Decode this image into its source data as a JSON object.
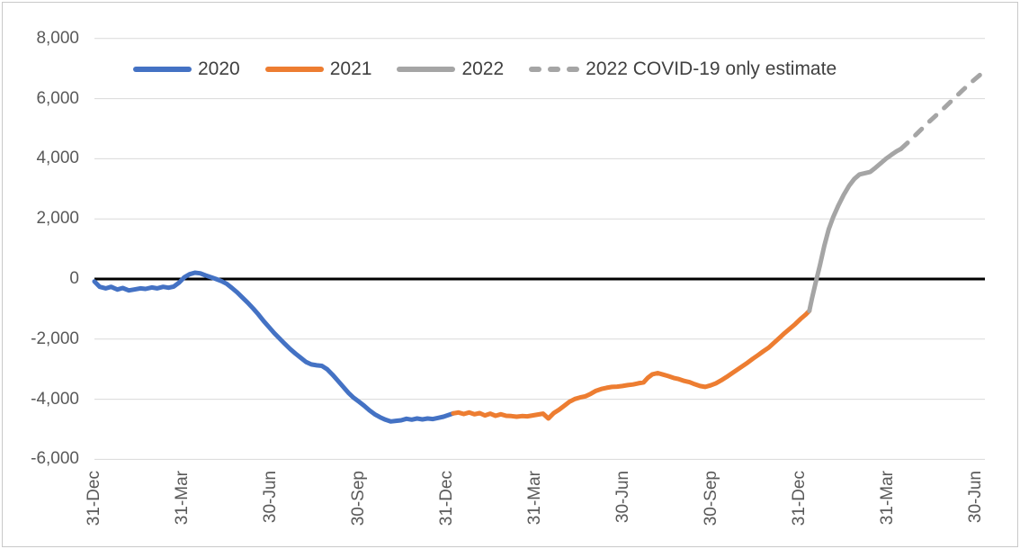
{
  "window": {
    "background": "#ffffff",
    "border_color": "#c9c9c9"
  },
  "chart_data": {
    "type": "line",
    "title": "",
    "xlabel": "",
    "ylabel": "",
    "grid": {
      "color": "#d9d9d9",
      "zero_line_color": "#000000",
      "grid_on": true
    },
    "y_axis": {
      "tick_labels": [
        "8,000",
        "6,000",
        "4,000",
        "2,000",
        "0",
        "-2,000",
        "-4,000",
        "-6,000"
      ],
      "tick_values": [
        8000,
        6000,
        4000,
        2000,
        0,
        -2000,
        -4000,
        -6000
      ],
      "range": [
        -6000,
        8000
      ],
      "label_color": "#595959"
    },
    "x_axis": {
      "tick_labels": [
        "31-Dec",
        "31-Mar",
        "30-Jun",
        "30-Sep",
        "31-Dec",
        "31-Mar",
        "30-Jun",
        "30-Sep",
        "31-Dec",
        "31-Mar",
        "30-Jun"
      ],
      "unit": "quarter-end dates, Dec 2019 through Jun 2022",
      "label_color": "#595959"
    },
    "legend": {
      "position": "top",
      "entries": [
        {
          "label": "2020",
          "color": "#4472c4",
          "dashed": false
        },
        {
          "label": "2021",
          "color": "#ed7d31",
          "dashed": false
        },
        {
          "label": "2022",
          "color": "#a5a5a5",
          "dashed": false
        },
        {
          "label": "2022 COVID-19 only estimate",
          "color": "#a5a5a5",
          "dashed": true
        }
      ]
    },
    "series": [
      {
        "name": "2020",
        "color": "#4472c4",
        "dashed": false,
        "points": [
          [
            0.0,
            -80
          ],
          [
            0.06,
            -260
          ],
          [
            0.13,
            -310
          ],
          [
            0.19,
            -260
          ],
          [
            0.26,
            -350
          ],
          [
            0.32,
            -300
          ],
          [
            0.39,
            -380
          ],
          [
            0.45,
            -350
          ],
          [
            0.52,
            -310
          ],
          [
            0.58,
            -330
          ],
          [
            0.65,
            -280
          ],
          [
            0.71,
            -310
          ],
          [
            0.78,
            -260
          ],
          [
            0.84,
            -290
          ],
          [
            0.9,
            -250
          ],
          [
            0.96,
            -120
          ],
          [
            1.02,
            60
          ],
          [
            1.08,
            160
          ],
          [
            1.14,
            210
          ],
          [
            1.2,
            190
          ],
          [
            1.26,
            120
          ],
          [
            1.32,
            60
          ],
          [
            1.38,
            0
          ],
          [
            1.44,
            -70
          ],
          [
            1.5,
            -160
          ],
          [
            1.56,
            -300
          ],
          [
            1.62,
            -450
          ],
          [
            1.68,
            -620
          ],
          [
            1.74,
            -790
          ],
          [
            1.8,
            -980
          ],
          [
            1.86,
            -1180
          ],
          [
            1.92,
            -1400
          ],
          [
            1.98,
            -1600
          ],
          [
            2.04,
            -1800
          ],
          [
            2.1,
            -1980
          ],
          [
            2.16,
            -2160
          ],
          [
            2.22,
            -2330
          ],
          [
            2.28,
            -2480
          ],
          [
            2.34,
            -2620
          ],
          [
            2.4,
            -2760
          ],
          [
            2.46,
            -2840
          ],
          [
            2.52,
            -2870
          ],
          [
            2.58,
            -2890
          ],
          [
            2.64,
            -3000
          ],
          [
            2.7,
            -3180
          ],
          [
            2.76,
            -3380
          ],
          [
            2.82,
            -3580
          ],
          [
            2.88,
            -3780
          ],
          [
            2.94,
            -3950
          ],
          [
            3.0,
            -4080
          ],
          [
            3.06,
            -4220
          ],
          [
            3.12,
            -4370
          ],
          [
            3.18,
            -4500
          ],
          [
            3.24,
            -4600
          ],
          [
            3.3,
            -4680
          ],
          [
            3.36,
            -4740
          ],
          [
            3.42,
            -4720
          ],
          [
            3.48,
            -4700
          ],
          [
            3.54,
            -4650
          ],
          [
            3.6,
            -4680
          ],
          [
            3.66,
            -4640
          ],
          [
            3.72,
            -4670
          ],
          [
            3.78,
            -4640
          ],
          [
            3.84,
            -4660
          ],
          [
            3.9,
            -4620
          ],
          [
            3.96,
            -4580
          ],
          [
            4.02,
            -4520
          ],
          [
            4.07,
            -4470
          ]
        ]
      },
      {
        "name": "2021",
        "color": "#ed7d31",
        "dashed": false,
        "points": [
          [
            4.07,
            -4470
          ],
          [
            4.13,
            -4440
          ],
          [
            4.19,
            -4490
          ],
          [
            4.25,
            -4440
          ],
          [
            4.31,
            -4500
          ],
          [
            4.37,
            -4460
          ],
          [
            4.43,
            -4540
          ],
          [
            4.49,
            -4480
          ],
          [
            4.55,
            -4550
          ],
          [
            4.61,
            -4500
          ],
          [
            4.67,
            -4550
          ],
          [
            4.73,
            -4560
          ],
          [
            4.79,
            -4580
          ],
          [
            4.85,
            -4560
          ],
          [
            4.91,
            -4570
          ],
          [
            4.97,
            -4540
          ],
          [
            5.03,
            -4510
          ],
          [
            5.09,
            -4480
          ],
          [
            5.15,
            -4640
          ],
          [
            5.21,
            -4460
          ],
          [
            5.27,
            -4350
          ],
          [
            5.33,
            -4220
          ],
          [
            5.39,
            -4080
          ],
          [
            5.45,
            -3990
          ],
          [
            5.51,
            -3940
          ],
          [
            5.57,
            -3900
          ],
          [
            5.63,
            -3820
          ],
          [
            5.69,
            -3720
          ],
          [
            5.75,
            -3660
          ],
          [
            5.81,
            -3620
          ],
          [
            5.87,
            -3590
          ],
          [
            5.93,
            -3580
          ],
          [
            5.99,
            -3560
          ],
          [
            6.05,
            -3530
          ],
          [
            6.11,
            -3510
          ],
          [
            6.17,
            -3470
          ],
          [
            6.23,
            -3440
          ],
          [
            6.28,
            -3280
          ],
          [
            6.33,
            -3170
          ],
          [
            6.39,
            -3130
          ],
          [
            6.45,
            -3180
          ],
          [
            6.51,
            -3230
          ],
          [
            6.57,
            -3290
          ],
          [
            6.63,
            -3330
          ],
          [
            6.69,
            -3390
          ],
          [
            6.75,
            -3430
          ],
          [
            6.81,
            -3500
          ],
          [
            6.87,
            -3560
          ],
          [
            6.93,
            -3590
          ],
          [
            6.99,
            -3540
          ],
          [
            7.05,
            -3470
          ],
          [
            7.11,
            -3370
          ],
          [
            7.17,
            -3260
          ],
          [
            7.23,
            -3140
          ],
          [
            7.29,
            -3020
          ],
          [
            7.35,
            -2900
          ],
          [
            7.41,
            -2780
          ],
          [
            7.47,
            -2650
          ],
          [
            7.53,
            -2530
          ],
          [
            7.59,
            -2400
          ],
          [
            7.65,
            -2280
          ],
          [
            7.71,
            -2120
          ],
          [
            7.77,
            -1960
          ],
          [
            7.83,
            -1800
          ],
          [
            7.89,
            -1650
          ],
          [
            7.95,
            -1500
          ],
          [
            8.01,
            -1330
          ],
          [
            8.07,
            -1180
          ],
          [
            8.11,
            -1060
          ]
        ]
      },
      {
        "name": "2022",
        "color": "#a5a5a5",
        "dashed": false,
        "points": [
          [
            8.11,
            -1060
          ],
          [
            8.14,
            -650
          ],
          [
            8.18,
            -150
          ],
          [
            8.23,
            450
          ],
          [
            8.28,
            1100
          ],
          [
            8.33,
            1650
          ],
          [
            8.38,
            2050
          ],
          [
            8.44,
            2450
          ],
          [
            8.5,
            2800
          ],
          [
            8.56,
            3100
          ],
          [
            8.62,
            3330
          ],
          [
            8.68,
            3480
          ],
          [
            8.74,
            3520
          ],
          [
            8.8,
            3560
          ],
          [
            8.86,
            3700
          ],
          [
            8.92,
            3850
          ],
          [
            8.98,
            4000
          ],
          [
            9.04,
            4130
          ],
          [
            9.1,
            4250
          ],
          [
            9.15,
            4330
          ]
        ]
      },
      {
        "name": "2022 COVID-19 only estimate",
        "color": "#a5a5a5",
        "dashed": true,
        "points": [
          [
            9.15,
            4330
          ],
          [
            9.25,
            4600
          ],
          [
            9.35,
            4890
          ],
          [
            9.45,
            5180
          ],
          [
            9.55,
            5450
          ],
          [
            9.65,
            5720
          ],
          [
            9.75,
            6000
          ],
          [
            9.85,
            6280
          ],
          [
            9.95,
            6550
          ],
          [
            10.05,
            6800
          ],
          [
            10.12,
            6950
          ]
        ]
      }
    ]
  }
}
